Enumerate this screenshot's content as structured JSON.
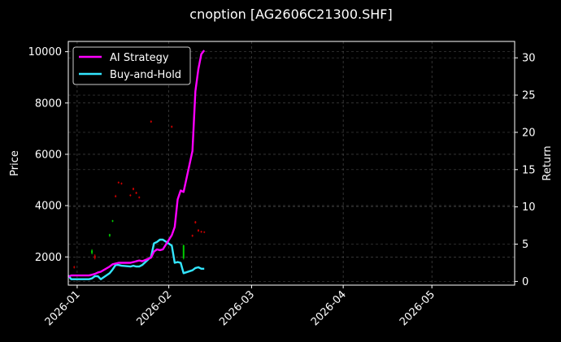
{
  "chart_data": {
    "type": "line",
    "title": "cnoption [AG2606C21300.SHF]",
    "xlabel": "",
    "ylabel": "Price",
    "y2label": "Return",
    "x_range": [
      "2025-12-29",
      "2026-05-29"
    ],
    "x_ticks": [
      "2026-01",
      "2026-02",
      "2026-03",
      "2026-04",
      "2026-05"
    ],
    "ylim": [
      900,
      10400
    ],
    "y_ticks": [
      2000,
      4000,
      6000,
      8000,
      10000
    ],
    "y2lim": [
      -0.5,
      32.2
    ],
    "y2_ticks": [
      0,
      5,
      10,
      15,
      20,
      25,
      30
    ],
    "grid": true,
    "legend_position": "top-left",
    "background": "#000000",
    "series": [
      {
        "name": "AI Strategy",
        "axis": "right",
        "color": "#ff00ff",
        "x": [
          "2025-12-29",
          "2025-12-30",
          "2026-01-02",
          "2026-01-05",
          "2026-01-06",
          "2026-01-07",
          "2026-01-08",
          "2026-01-09",
          "2026-01-12",
          "2026-01-13",
          "2026-01-14",
          "2026-01-15",
          "2026-01-16",
          "2026-01-19",
          "2026-01-20",
          "2026-01-21",
          "2026-01-22",
          "2026-01-23",
          "2026-01-26",
          "2026-01-27",
          "2026-01-28",
          "2026-01-29",
          "2026-01-30",
          "2026-02-02",
          "2026-02-03",
          "2026-02-04",
          "2026-02-05",
          "2026-02-06",
          "2026-02-09",
          "2026-02-10",
          "2026-02-11",
          "2026-02-12",
          "2026-02-13"
        ],
        "values": [
          0.6,
          0.8,
          0.8,
          0.8,
          0.9,
          1.0,
          1.2,
          1.3,
          2.0,
          2.3,
          2.4,
          2.5,
          2.5,
          2.5,
          2.6,
          2.7,
          2.8,
          2.7,
          3.2,
          4.0,
          4.3,
          4.2,
          4.3,
          6.2,
          7.3,
          11.0,
          12.2,
          12.0,
          17.5,
          25.5,
          28.5,
          30.5,
          31.0
        ]
      },
      {
        "name": "Buy-and-Hold",
        "axis": "right",
        "color": "#33e6ff",
        "x": [
          "2025-12-29",
          "2025-12-30",
          "2026-01-02",
          "2026-01-05",
          "2026-01-06",
          "2026-01-07",
          "2026-01-08",
          "2026-01-09",
          "2026-01-12",
          "2026-01-13",
          "2026-01-14",
          "2026-01-15",
          "2026-01-16",
          "2026-01-19",
          "2026-01-20",
          "2026-01-21",
          "2026-01-22",
          "2026-01-23",
          "2026-01-26",
          "2026-01-27",
          "2026-01-28",
          "2026-01-29",
          "2026-01-30",
          "2026-02-02",
          "2026-02-03",
          "2026-02-04",
          "2026-02-05",
          "2026-02-06",
          "2026-02-09",
          "2026-02-10",
          "2026-02-11",
          "2026-02-12",
          "2026-02-13"
        ],
        "values": [
          0.8,
          0.3,
          0.3,
          0.3,
          0.4,
          0.7,
          0.7,
          0.3,
          1.1,
          1.6,
          2.2,
          2.2,
          2.1,
          2.0,
          2.1,
          2.0,
          2.0,
          2.2,
          3.3,
          5.1,
          5.3,
          5.6,
          5.6,
          4.8,
          2.5,
          2.6,
          2.5,
          1.1,
          1.5,
          1.8,
          1.9,
          1.7,
          1.7
        ]
      }
    ],
    "candlesticks": {
      "axis": "left",
      "note_colors": {
        "up": "#00cc00",
        "down": "#cc0000"
      },
      "points": [
        {
          "x": "2025-12-31",
          "open": 1620,
          "close": 1580,
          "high": 1650,
          "low": 1550
        },
        {
          "x": "2026-01-06",
          "open": 2150,
          "close": 2250,
          "high": 2300,
          "low": 2100
        },
        {
          "x": "2026-01-07",
          "open": 2050,
          "close": 1950,
          "high": 2100,
          "low": 1900
        },
        {
          "x": "2026-01-12",
          "open": 2820,
          "close": 2880,
          "high": 2900,
          "low": 2780
        },
        {
          "x": "2026-01-13",
          "open": 3380,
          "close": 3420,
          "high": 3440,
          "low": 3360
        },
        {
          "x": "2026-01-14",
          "open": 4380,
          "close": 4340,
          "high": 4420,
          "low": 4320
        },
        {
          "x": "2026-01-15",
          "open": 4920,
          "close": 4880,
          "high": 4940,
          "low": 4860
        },
        {
          "x": "2026-01-16",
          "open": 4880,
          "close": 4840,
          "high": 4900,
          "low": 4820
        },
        {
          "x": "2026-01-19",
          "open": 4420,
          "close": 4380,
          "high": 4440,
          "low": 4360
        },
        {
          "x": "2026-01-20",
          "open": 4680,
          "close": 4620,
          "high": 4700,
          "low": 4600
        },
        {
          "x": "2026-01-21",
          "open": 4520,
          "close": 4470,
          "high": 4540,
          "low": 4450
        },
        {
          "x": "2026-01-22",
          "open": 4340,
          "close": 4300,
          "high": 4360,
          "low": 4280
        },
        {
          "x": "2026-01-26",
          "open": 7300,
          "close": 7250,
          "high": 7320,
          "low": 7230
        },
        {
          "x": "2026-02-02",
          "open": 7100,
          "close": 7050,
          "high": 7120,
          "low": 7030
        },
        {
          "x": "2026-02-06",
          "open": 1950,
          "close": 2450,
          "high": 2480,
          "low": 1900
        },
        {
          "x": "2026-02-09",
          "open": 2850,
          "close": 2800,
          "high": 2870,
          "low": 2780
        },
        {
          "x": "2026-02-10",
          "open": 3380,
          "close": 3320,
          "high": 3400,
          "low": 3300
        },
        {
          "x": "2026-02-11",
          "open": 3060,
          "close": 3000,
          "high": 3080,
          "low": 2980
        },
        {
          "x": "2026-02-12",
          "open": 3000,
          "close": 2960,
          "high": 3020,
          "low": 2940
        },
        {
          "x": "2026-02-13",
          "open": 2980,
          "close": 2950,
          "high": 3000,
          "low": 2930
        }
      ]
    }
  }
}
